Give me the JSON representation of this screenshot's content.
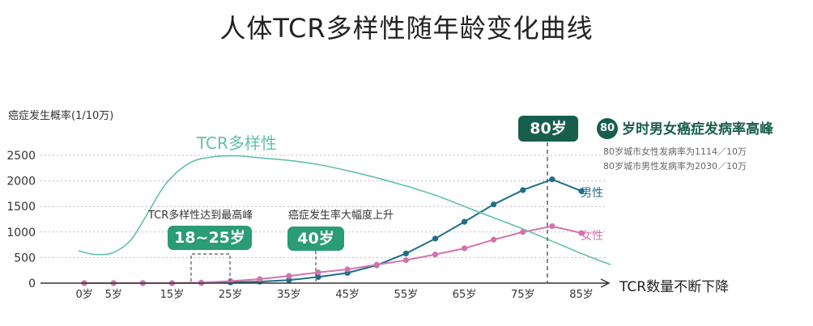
{
  "title": "人体TCR多样性随年龄变化曲线",
  "colors": {
    "tcr": "#63bfae",
    "male": "#1e6e8c",
    "female": "#d472ae",
    "badge_green": "#2a9c76",
    "badge_dark": "#175e4d",
    "grid": "#bbbbbb"
  },
  "annotations": {
    "tcr_peak_text": "TCR多样性达到最高峰",
    "tcr_peak_badge": "18~25岁",
    "cancer_rise_text": "癌症发生率大幅度上升",
    "cancer_rise_badge": "40岁",
    "age80_badge": "80岁",
    "right_circle": "80",
    "right_headline": "岁时男女癌症发病率高峰",
    "note_female": "80岁城市女性发病率为1114／10万",
    "note_male": "80岁城市男性发病率为2030／10万",
    "tcr_decline": "TCR数量不断下降"
  },
  "chart_data": {
    "type": "line",
    "ylabel": "癌症发生概率(1/10万)",
    "ylim": [
      0,
      2500
    ],
    "yticks": [
      0,
      500,
      1000,
      1500,
      2000,
      2500
    ],
    "xlim": [
      -5,
      94
    ],
    "xticks": [
      0,
      5,
      15,
      25,
      35,
      45,
      55,
      65,
      75,
      85
    ],
    "xtick_labels": [
      "0岁",
      "5岁",
      "15岁",
      "25岁",
      "35岁",
      "45岁",
      "55岁",
      "65岁",
      "75岁",
      "85岁"
    ],
    "grid": true,
    "series": [
      {
        "name": "男性",
        "color": "#1e6e8c",
        "x": [
          0,
          5,
          10,
          15,
          20,
          25,
          30,
          35,
          40,
          45,
          50,
          55,
          60,
          65,
          70,
          75,
          80,
          85
        ],
        "values": [
          0,
          0,
          0,
          0,
          5,
          15,
          30,
          60,
          120,
          200,
          350,
          580,
          870,
          1200,
          1540,
          1820,
          2030,
          1800
        ]
      },
      {
        "name": "女性",
        "color": "#d472ae",
        "x": [
          0,
          5,
          10,
          15,
          20,
          25,
          30,
          35,
          40,
          45,
          50,
          55,
          60,
          65,
          70,
          75,
          80,
          85
        ],
        "values": [
          0,
          0,
          0,
          0,
          10,
          40,
          80,
          140,
          210,
          270,
          360,
          450,
          560,
          680,
          850,
          1000,
          1114,
          980
        ]
      },
      {
        "name": "TCR多样性",
        "color": "#63bfae",
        "style": "smooth",
        "x": [
          -1,
          2,
          5,
          8,
          11,
          14,
          18,
          22,
          26,
          30,
          35,
          40,
          45,
          50,
          55,
          60,
          65,
          70,
          75,
          80,
          85,
          90
        ],
        "values": [
          630,
          560,
          600,
          850,
          1400,
          1950,
          2350,
          2470,
          2490,
          2450,
          2400,
          2320,
          2200,
          2060,
          1900,
          1720,
          1500,
          1280,
          1060,
          820,
          580,
          360
        ]
      }
    ]
  }
}
